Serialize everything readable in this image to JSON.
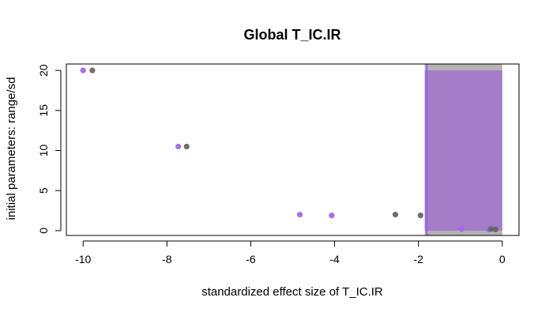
{
  "chart_data": {
    "type": "scatter",
    "title": "Global T_IC.IR",
    "xlabel": "standardized effect size of T_IC.IR",
    "ylabel": "initial parameters: range/sd",
    "xlim": [
      -10.4,
      0.4
    ],
    "ylim": [
      -0.6,
      20.8
    ],
    "x_ticks": [
      -10,
      -8,
      -6,
      -4,
      -2,
      0
    ],
    "y_ticks": [
      0,
      5,
      10,
      15,
      20
    ],
    "x_tick_labels": [
      "-10",
      "-8",
      "-6",
      "-4",
      "-2",
      "0"
    ],
    "y_tick_labels": [
      "0",
      "5",
      "10",
      "15",
      "20"
    ],
    "grid": false,
    "legend": "none",
    "colors": {
      "series_a": "#a166f0",
      "series_b": "#666666",
      "band_outer": "#b3b3b3",
      "band_inner": "#a47cc8",
      "band_line": "#9a5af0"
    },
    "band": {
      "x_start": -1.85,
      "x_end": 0.0,
      "line_x": -1.8,
      "inner_y": [
        0.0,
        20.0
      ]
    },
    "series": [
      {
        "color": "#a166f0",
        "points": [
          {
            "x": -10.0,
            "y": 20.0
          },
          {
            "x": -7.73,
            "y": 10.5
          },
          {
            "x": -4.83,
            "y": 2.0
          },
          {
            "x": -4.07,
            "y": 1.9
          },
          {
            "x": -0.97,
            "y": 0.2
          },
          {
            "x": -0.32,
            "y": 0.15
          }
        ]
      },
      {
        "color": "#666666",
        "points": [
          {
            "x": -9.78,
            "y": 20.0
          },
          {
            "x": -7.53,
            "y": 10.5
          },
          {
            "x": -2.55,
            "y": 2.0
          },
          {
            "x": -1.95,
            "y": 1.9
          },
          {
            "x": -0.27,
            "y": 0.2
          },
          {
            "x": -0.16,
            "y": 0.15
          }
        ]
      }
    ]
  }
}
